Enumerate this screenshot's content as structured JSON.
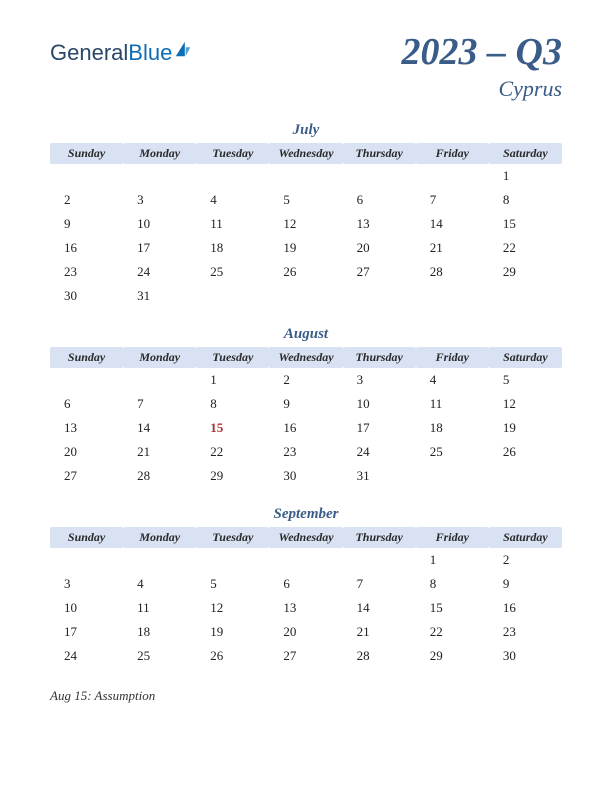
{
  "logo": {
    "part1": "General",
    "part2": "Blue"
  },
  "header": {
    "title": "2023 – Q3",
    "subtitle": "Cyprus"
  },
  "colors": {
    "accent": "#3a5c88",
    "header_bg": "#d8e2f2",
    "holiday": "#b03030",
    "text": "#222222"
  },
  "day_headers": [
    "Sunday",
    "Monday",
    "Tuesday",
    "Wednesday",
    "Thursday",
    "Friday",
    "Saturday"
  ],
  "months": [
    {
      "name": "July",
      "weeks": [
        [
          "",
          "",
          "",
          "",
          "",
          "",
          "1"
        ],
        [
          "2",
          "3",
          "4",
          "5",
          "6",
          "7",
          "8"
        ],
        [
          "9",
          "10",
          "11",
          "12",
          "13",
          "14",
          "15"
        ],
        [
          "16",
          "17",
          "18",
          "19",
          "20",
          "21",
          "22"
        ],
        [
          "23",
          "24",
          "25",
          "26",
          "27",
          "28",
          "29"
        ],
        [
          "30",
          "31",
          "",
          "",
          "",
          "",
          ""
        ]
      ],
      "holidays": []
    },
    {
      "name": "August",
      "weeks": [
        [
          "",
          "",
          "1",
          "2",
          "3",
          "4",
          "5"
        ],
        [
          "6",
          "7",
          "8",
          "9",
          "10",
          "11",
          "12"
        ],
        [
          "13",
          "14",
          "15",
          "16",
          "17",
          "18",
          "19"
        ],
        [
          "20",
          "21",
          "22",
          "23",
          "24",
          "25",
          "26"
        ],
        [
          "27",
          "28",
          "29",
          "30",
          "31",
          "",
          ""
        ]
      ],
      "holidays": [
        "15"
      ]
    },
    {
      "name": "September",
      "weeks": [
        [
          "",
          "",
          "",
          "",
          "",
          "1",
          "2"
        ],
        [
          "3",
          "4",
          "5",
          "6",
          "7",
          "8",
          "9"
        ],
        [
          "10",
          "11",
          "12",
          "13",
          "14",
          "15",
          "16"
        ],
        [
          "17",
          "18",
          "19",
          "20",
          "21",
          "22",
          "23"
        ],
        [
          "24",
          "25",
          "26",
          "27",
          "28",
          "29",
          "30"
        ]
      ],
      "holidays": []
    }
  ],
  "holiday_list": [
    "Aug 15: Assumption"
  ]
}
